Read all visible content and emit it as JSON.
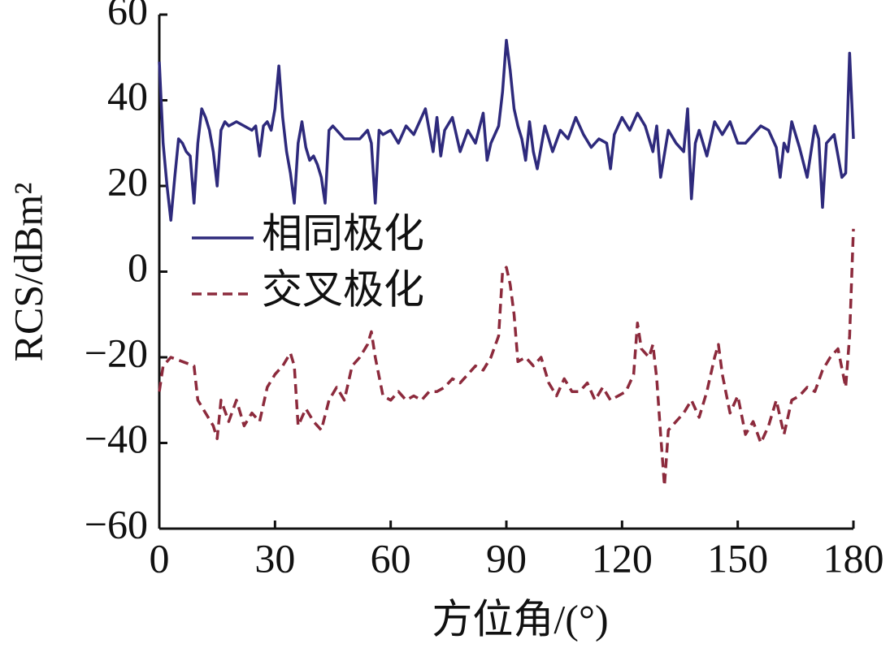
{
  "chart_data": {
    "type": "line",
    "xlabel": "方位角/(°)",
    "ylabel": "RCS/dBm²",
    "xlim": [
      0,
      180
    ],
    "xticks": [
      0,
      30,
      60,
      90,
      120,
      150,
      180
    ],
    "ylim": [
      -60,
      60
    ],
    "yticks": [
      {
        "value": -60,
        "label": "−60"
      },
      {
        "value": -40,
        "label": "−40"
      },
      {
        "value": -20,
        "label": "−20"
      },
      0,
      20,
      40,
      60
    ],
    "legend": "center left",
    "series": [
      {
        "name": "相同极化",
        "color": "#2e2a7c",
        "dash": false,
        "x": [
          0,
          1,
          2,
          3,
          4,
          5,
          6,
          7,
          8,
          9,
          10,
          11,
          12,
          13,
          14,
          15,
          16,
          17,
          18,
          20,
          22,
          24,
          25,
          26,
          27,
          28,
          29,
          30,
          31,
          32,
          33,
          34,
          35,
          36,
          37,
          38,
          39,
          40,
          41,
          42,
          43,
          44,
          45,
          46,
          48,
          50,
          52,
          54,
          55,
          56,
          57,
          58,
          60,
          62,
          64,
          66,
          68,
          69,
          70,
          71,
          72,
          73,
          74,
          76,
          78,
          80,
          82,
          84,
          85,
          86,
          88,
          89,
          90,
          91,
          92,
          93,
          94,
          95,
          96,
          97,
          98,
          100,
          102,
          104,
          106,
          108,
          110,
          112,
          114,
          116,
          117,
          118,
          120,
          122,
          124,
          126,
          128,
          129,
          130,
          132,
          134,
          136,
          137,
          138,
          139,
          140,
          142,
          144,
          146,
          148,
          150,
          152,
          154,
          156,
          158,
          160,
          161,
          162,
          163,
          164,
          166,
          168,
          170,
          171,
          172,
          173,
          175,
          177,
          178,
          179,
          180
        ],
        "values": [
          49,
          30,
          20,
          12,
          22,
          31,
          30,
          28,
          27,
          16,
          30,
          38,
          36,
          33,
          28,
          20,
          33,
          35,
          34,
          35,
          34,
          33,
          34,
          27,
          34,
          35,
          33,
          38,
          48,
          36,
          28,
          23,
          16,
          30,
          35,
          29,
          26,
          27,
          25,
          22,
          16,
          33,
          34,
          33,
          31,
          31,
          31,
          33,
          30,
          16,
          33,
          32,
          33,
          30,
          34,
          32,
          36,
          38,
          33,
          28,
          36,
          27,
          33,
          36,
          28,
          33,
          30,
          37,
          26,
          30,
          34,
          42,
          54,
          47,
          38,
          34,
          31,
          26,
          35,
          28,
          24,
          34,
          28,
          33,
          31,
          36,
          32,
          29,
          31,
          30,
          24,
          32,
          36,
          33,
          37,
          34,
          28,
          34,
          22,
          33,
          30,
          28,
          38,
          17,
          30,
          33,
          27,
          35,
          32,
          35,
          30,
          30,
          32,
          34,
          33,
          29,
          22,
          30,
          28,
          35,
          29,
          22,
          34,
          31,
          15,
          30,
          32,
          22,
          23,
          51,
          31
        ]
      },
      {
        "name": "交叉极化",
        "color": "#8c2a3c",
        "dash": true,
        "x": [
          0,
          1,
          3,
          6,
          9,
          10,
          12,
          14,
          15,
          16,
          18,
          20,
          22,
          24,
          26,
          28,
          30,
          32,
          34,
          35,
          36,
          38,
          40,
          42,
          44,
          46,
          48,
          50,
          52,
          54,
          55,
          56,
          58,
          60,
          62,
          64,
          66,
          68,
          70,
          72,
          74,
          76,
          78,
          80,
          82,
          84,
          86,
          88,
          89,
          90,
          91,
          92,
          93,
          95,
          97,
          99,
          101,
          103,
          105,
          107,
          109,
          111,
          113,
          115,
          117,
          119,
          121,
          123,
          124,
          125,
          127,
          128,
          129,
          130,
          131,
          132,
          134,
          136,
          138,
          140,
          142,
          144,
          145,
          146,
          148,
          150,
          152,
          154,
          156,
          158,
          160,
          162,
          164,
          166,
          168,
          170,
          172,
          174,
          176,
          178,
          179,
          180
        ],
        "values": [
          -28,
          -22,
          -20,
          -21,
          -22,
          -30,
          -33,
          -36,
          -39,
          -30,
          -35,
          -30,
          -36,
          -33,
          -35,
          -27,
          -24,
          -22,
          -19,
          -22,
          -36,
          -32,
          -35,
          -37,
          -30,
          -27,
          -30,
          -22,
          -20,
          -17,
          -14,
          -20,
          -29,
          -30,
          -28,
          -30,
          -29,
          -30,
          -28,
          -28,
          -27,
          -25,
          -26,
          -24,
          -22,
          -23,
          -20,
          -15,
          0,
          1,
          -3,
          -10,
          -21,
          -20,
          -22,
          -20,
          -26,
          -29,
          -25,
          -28,
          -28,
          -26,
          -30,
          -27,
          -30,
          -29,
          -28,
          -24,
          -12,
          -18,
          -20,
          -17,
          -25,
          -38,
          -50,
          -37,
          -35,
          -33,
          -30,
          -34,
          -28,
          -20,
          -17,
          -24,
          -33,
          -29,
          -38,
          -35,
          -40,
          -36,
          -30,
          -38,
          -30,
          -29,
          -27,
          -28,
          -23,
          -20,
          -18,
          -27,
          -15,
          10
        ]
      }
    ]
  }
}
